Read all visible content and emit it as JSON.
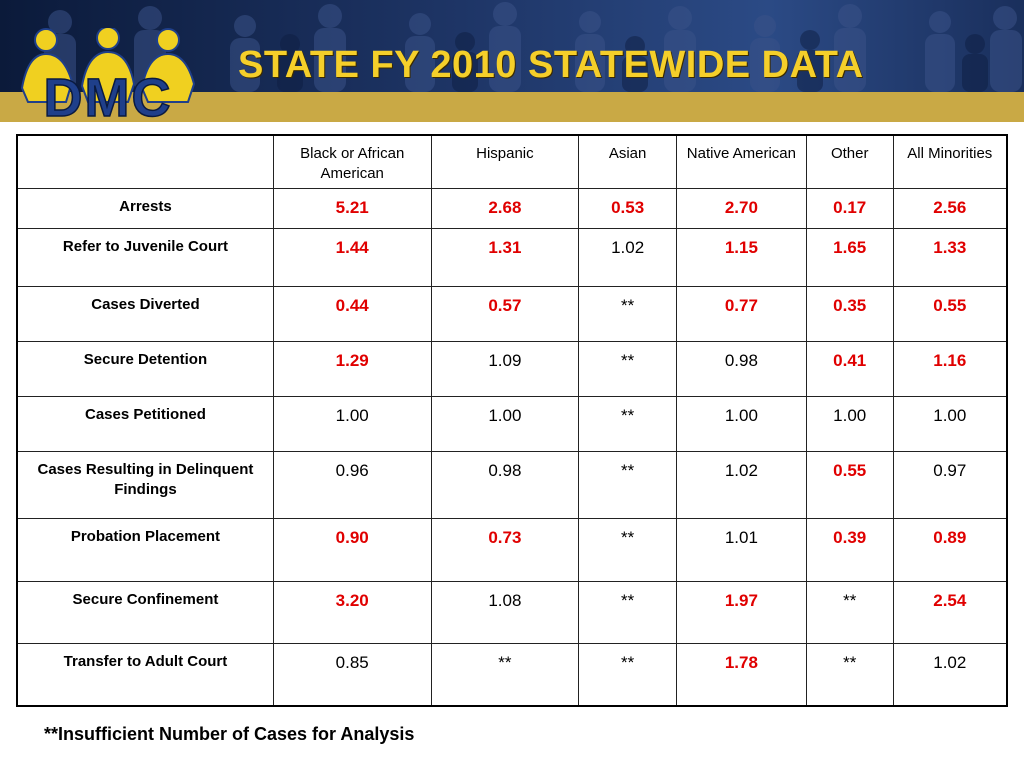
{
  "header": {
    "title": "STATE FY 2010 STATEWIDE DATA",
    "logo_text": "DMC",
    "colors": {
      "title": "#f5cf2a",
      "band": "#c9a945",
      "logo_blue": "#1f3f8a",
      "logo_yellow": "#f0d020"
    }
  },
  "table": {
    "columns": [
      "",
      "Black or African American",
      "Hispanic",
      "Asian",
      "Native American",
      "Other",
      "All Minorities"
    ],
    "rows": [
      {
        "label": "Arrests",
        "cells": [
          {
            "v": "5.21",
            "sig": true
          },
          {
            "v": "2.68",
            "sig": true
          },
          {
            "v": "0.53",
            "sig": true
          },
          {
            "v": "2.70",
            "sig": true
          },
          {
            "v": "0.17",
            "sig": true
          },
          {
            "v": "2.56",
            "sig": true
          }
        ]
      },
      {
        "label": "Refer to Juvenile Court",
        "cells": [
          {
            "v": "1.44",
            "sig": true
          },
          {
            "v": "1.31",
            "sig": true
          },
          {
            "v": "1.02",
            "sig": false
          },
          {
            "v": "1.15",
            "sig": true
          },
          {
            "v": "1.65",
            "sig": true
          },
          {
            "v": "1.33",
            "sig": true
          }
        ]
      },
      {
        "label": "Cases Diverted",
        "cells": [
          {
            "v": "0.44",
            "sig": true
          },
          {
            "v": "0.57",
            "sig": true
          },
          {
            "v": "**",
            "sig": false
          },
          {
            "v": "0.77",
            "sig": true
          },
          {
            "v": "0.35",
            "sig": true
          },
          {
            "v": "0.55",
            "sig": true
          }
        ]
      },
      {
        "label": "Secure Detention",
        "cells": [
          {
            "v": "1.29",
            "sig": true
          },
          {
            "v": "1.09",
            "sig": false
          },
          {
            "v": "**",
            "sig": false
          },
          {
            "v": "0.98",
            "sig": false
          },
          {
            "v": "0.41",
            "sig": true
          },
          {
            "v": "1.16",
            "sig": true
          }
        ]
      },
      {
        "label": "Cases Petitioned",
        "cells": [
          {
            "v": "1.00",
            "sig": false
          },
          {
            "v": "1.00",
            "sig": false
          },
          {
            "v": "**",
            "sig": false
          },
          {
            "v": "1.00",
            "sig": false
          },
          {
            "v": "1.00",
            "sig": false
          },
          {
            "v": "1.00",
            "sig": false
          }
        ]
      },
      {
        "label": "Cases Resulting in Delinquent Findings",
        "cells": [
          {
            "v": "0.96",
            "sig": false
          },
          {
            "v": "0.98",
            "sig": false
          },
          {
            "v": "**",
            "sig": false
          },
          {
            "v": "1.02",
            "sig": false
          },
          {
            "v": "0.55",
            "sig": true
          },
          {
            "v": "0.97",
            "sig": false
          }
        ]
      },
      {
        "label": "Probation Placement",
        "cells": [
          {
            "v": "0.90",
            "sig": true
          },
          {
            "v": "0.73",
            "sig": true
          },
          {
            "v": "**",
            "sig": false
          },
          {
            "v": "1.01",
            "sig": false
          },
          {
            "v": "0.39",
            "sig": true
          },
          {
            "v": "0.89",
            "sig": true
          }
        ]
      },
      {
        "label": "Secure Confinement",
        "cells": [
          {
            "v": "3.20",
            "sig": true
          },
          {
            "v": "1.08",
            "sig": false
          },
          {
            "v": "**",
            "sig": false
          },
          {
            "v": "1.97",
            "sig": true
          },
          {
            "v": "**",
            "sig": false
          },
          {
            "v": "2.54",
            "sig": true
          }
        ]
      },
      {
        "label": "Transfer to Adult Court",
        "cells": [
          {
            "v": "0.85",
            "sig": false
          },
          {
            "v": "**",
            "sig": false
          },
          {
            "v": "**",
            "sig": false
          },
          {
            "v": "1.78",
            "sig": true
          },
          {
            "v": "**",
            "sig": false
          },
          {
            "v": "1.02",
            "sig": false
          }
        ]
      }
    ],
    "colors": {
      "significant": "#e00000",
      "normal": "#000000"
    }
  },
  "footnote": "**Insufficient Number of Cases for Analysis"
}
